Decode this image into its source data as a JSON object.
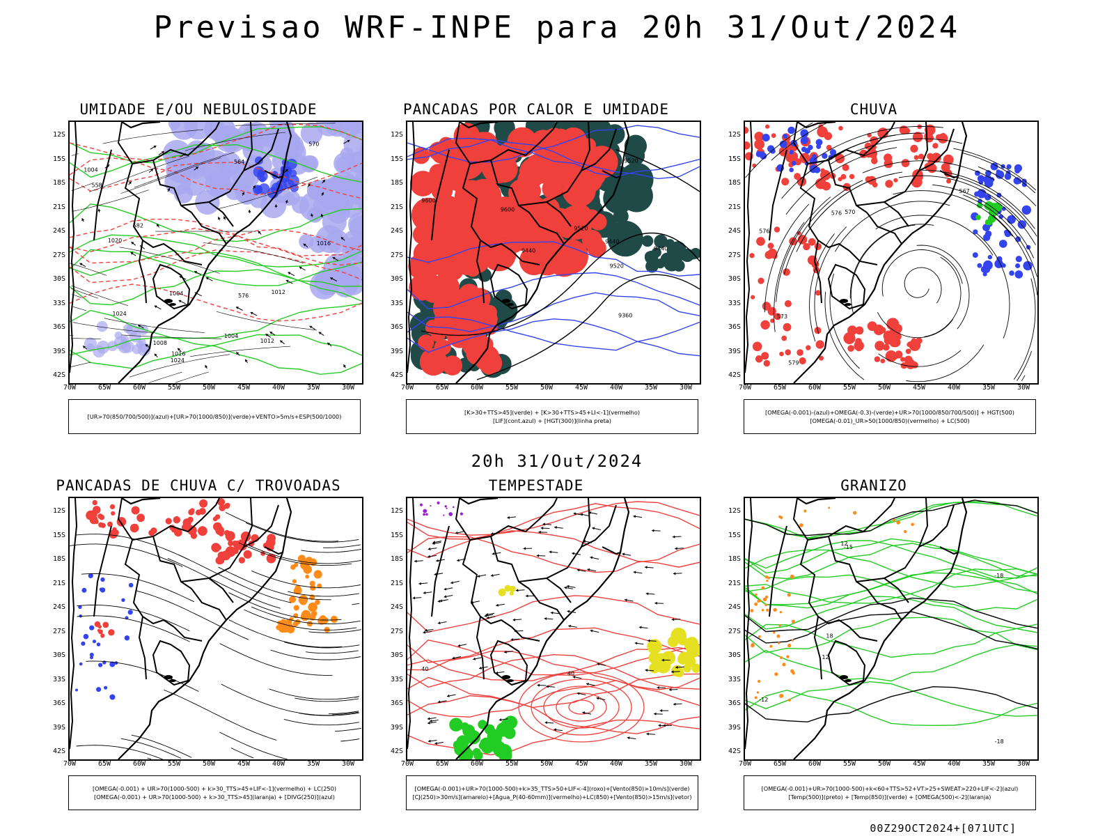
{
  "title": "Previsao WRF-INPE  para 20h 31/Out/2024",
  "subtitle": "20h 31/Out/2024",
  "footer": "00Z29OCT2024+[071UTC]",
  "axes": {
    "lat_labels": [
      "12S",
      "15S",
      "18S",
      "21S",
      "24S",
      "27S",
      "30S",
      "33S",
      "36S",
      "39S",
      "42S"
    ],
    "lon_labels": [
      "70W",
      "65W",
      "60W",
      "55W",
      "50W",
      "45W",
      "40W",
      "35W",
      "30W"
    ]
  },
  "colors": {
    "red": "#f0403c",
    "green": "#22cc22",
    "blue": "#3344ee",
    "lavender": "#a8a8f0",
    "darkteal": "#1f4a48",
    "orange": "#ff8c1a",
    "yellow": "#e6e022",
    "purple": "#9922cc"
  },
  "panels": [
    {
      "id": "umidade",
      "title": "UMIDADE E/OU NEBULOSIDADE",
      "legend": [
        "[UR>70(850/700/500)](azul)+[UR>70(1000/850)](verde)+VENTO>5m/s+ESP(500/1000)"
      ],
      "contour_labels": [
        "1004",
        "1004",
        "1008",
        "1012",
        "1016",
        "1016",
        "1020",
        "1024",
        "1024",
        "1004",
        "1012",
        "570",
        "576",
        "582",
        "564",
        "558"
      ]
    },
    {
      "id": "pancadas-calor",
      "title": "PANCADAS POR CALOR E UMIDADE",
      "legend": [
        "[K>30+TTS>45](verde) + [K>30+TTS>45+LI<-1](vermelho)",
        "[LIF](cont.azul) + [HGT(300)](linha preta)"
      ],
      "contour_labels": [
        "9600",
        "9600",
        "9520",
        "9520",
        "9520",
        "9440",
        "9440",
        "9440",
        "9360"
      ]
    },
    {
      "id": "chuva",
      "title": "CHUVA",
      "legend": [
        "[OMEGA(-0.001)-(azul)+OMEGA(-0.3)-(verde)+UR>70(1000/850/700/500)] + HGT(500)",
        "[OMEGA(-0.01)_UR>50(1000/850)(vermelho) + LC(500)"
      ],
      "contour_labels": [
        "576",
        "573",
        "570",
        "567",
        "576",
        "579"
      ]
    },
    {
      "id": "pancadas-trovoadas",
      "title": "PANCADAS DE CHUVA C/ TROVOADAS",
      "legend": [
        "[OMEGA(-0.001) + UR>70(1000-500) + k>30_TTS>45+LIF<-1](vermelho) + LC(250)",
        "[OMEGA(-0.001) + UR>70(1000-500) + k>30_TTS>45](laranja) + [DIVG(250)](azul)"
      ],
      "contour_labels": []
    },
    {
      "id": "tempestade",
      "title": "TEMPESTADE",
      "legend": [
        "[OMEGA(-0.001)+UR>70(1000-500)+k>35_TTS>50+LIF<-4](roxo)+[Vento(850)>10m/s](verde)",
        "[CJ(250)>30m/s](amarelo)+[Agua_P(40-60mm)](vermelho)+LC(850)+[Vento(850)>15m/s](vetor)"
      ],
      "contour_labels": [
        "40",
        "40"
      ]
    },
    {
      "id": "granizo",
      "title": "GRANIZO",
      "legend": [
        "[OMEGA(-0.001)+UR>70(1000-500)+k<60+TTS>52+VT>25+SWEAT>220+LIF<-2](azul)",
        "[Temp(500)](preto) + [Temp(850)](verde) + [OMEGA(500)<-2](laranja)"
      ],
      "contour_labels": [
        "-12",
        "-15",
        "-18",
        "-18",
        "12",
        "18",
        "12"
      ]
    }
  ]
}
